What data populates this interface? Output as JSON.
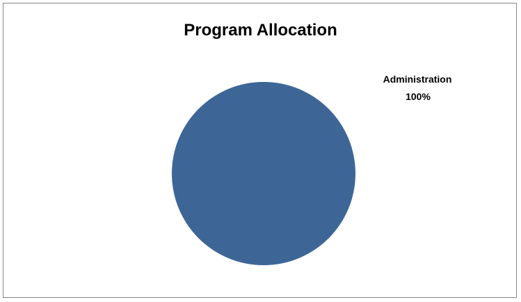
{
  "chart_data": {
    "type": "pie",
    "title": "Program Allocation",
    "slices": [
      {
        "label": "Administration",
        "value": 100,
        "percent_label": "100%",
        "color": "#3D6697"
      }
    ],
    "legend": "none"
  }
}
